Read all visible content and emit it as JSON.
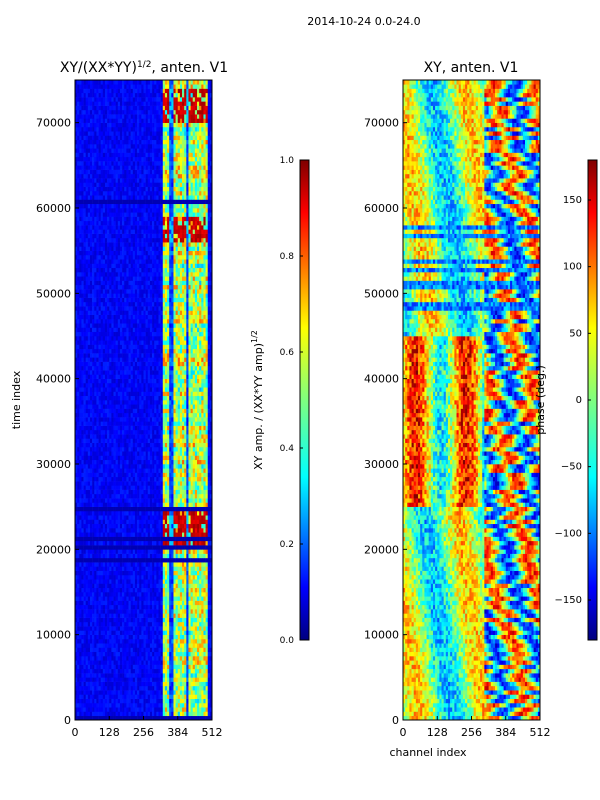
{
  "figure_title": "2014-10-24 0.0-24.0",
  "colors": {
    "jet": [
      "#00007f",
      "#0000ff",
      "#007fff",
      "#00ffff",
      "#7fff7f",
      "#ffff00",
      "#ff7f00",
      "#ff0000",
      "#7f0000"
    ]
  },
  "chart_data": [
    {
      "type": "heatmap",
      "title_main": "XY/(XX*YY)",
      "title_sup": "1/2",
      "title_tail": ", anten. V1",
      "xlabel": "",
      "ylabel": "time index",
      "xlim": [
        0,
        512
      ],
      "ylim": [
        0,
        75000
      ],
      "xticks": [
        0,
        128,
        256,
        384,
        512
      ],
      "yticks": [
        0,
        10000,
        20000,
        30000,
        40000,
        50000,
        60000,
        70000
      ],
      "colorbar": {
        "label_main": "XY amp. / (XX*YY amp)",
        "label_sup": "1/2",
        "min": 0.0,
        "max": 1.0,
        "ticks": [
          0.0,
          0.2,
          0.4,
          0.6,
          0.8,
          1.0
        ],
        "tick_labels": [
          "0.0",
          "0.2",
          "0.4",
          "0.6",
          "0.8",
          "1.0"
        ]
      },
      "description_values": {
        "background_level": 0.12,
        "bright_band_channels": [
          325,
          500
        ],
        "bright_band_level": 0.55,
        "hot_time_ranges": [
          [
            20500,
            25000
          ],
          [
            56000,
            59000
          ],
          [
            70000,
            74000
          ]
        ],
        "hot_level": 0.93
      }
    },
    {
      "type": "heatmap",
      "title_main": "XY, anten. V1",
      "xlabel": "channel index",
      "ylabel": "",
      "xlim": [
        0,
        512
      ],
      "ylim": [
        0,
        75000
      ],
      "xticks": [
        0,
        128,
        256,
        384,
        512
      ],
      "yticks": [
        0,
        10000,
        20000,
        30000,
        40000,
        50000,
        60000,
        70000
      ],
      "colorbar": {
        "label_main": "phase (deg.)",
        "min": -180,
        "max": 180,
        "ticks": [
          -150,
          -100,
          -50,
          0,
          50,
          100,
          150
        ],
        "tick_labels": [
          "−150",
          "−100",
          "−50",
          "0",
          "50",
          "100",
          "150"
        ]
      }
    }
  ]
}
